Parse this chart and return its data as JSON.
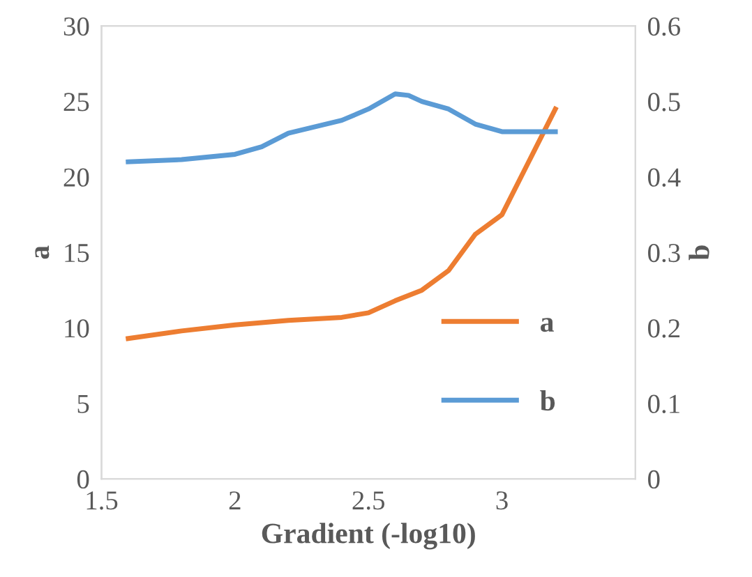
{
  "chart_data": {
    "type": "line",
    "xlabel": "Gradient (-log10)",
    "ylabel": "a",
    "y2label": "b",
    "xlim": [
      1.5,
      3.5
    ],
    "xticks": [
      1.5,
      2,
      2.5,
      3
    ],
    "ylim": [
      0,
      30
    ],
    "yticks": [
      0,
      5,
      10,
      15,
      20,
      25,
      30
    ],
    "y2lim": [
      0,
      0.6
    ],
    "y2ticks": [
      0,
      0.1,
      0.2,
      0.3,
      0.4,
      0.5,
      0.6
    ],
    "grid": false,
    "legend": "bottom right",
    "marker": "none",
    "line_style": "solid",
    "series": [
      {
        "name": "a",
        "color": "#ed7d31",
        "x": [
          1.6,
          1.8,
          2.0,
          2.2,
          2.4,
          2.5,
          2.6,
          2.7,
          2.8,
          2.9,
          3.0,
          3.1,
          3.2
        ],
        "values": [
          9.3,
          9.8,
          10.2,
          10.5,
          10.7,
          11.0,
          11.8,
          12.5,
          13.8,
          16.2,
          17.5,
          21.0,
          24.5
        ]
      },
      {
        "name": "b",
        "color": "#5b9bd5",
        "axis": "y2",
        "x": [
          1.6,
          1.8,
          2.0,
          2.1,
          2.2,
          2.4,
          2.5,
          2.6,
          2.65,
          2.7,
          2.8,
          2.9,
          3.0,
          3.1,
          3.2
        ],
        "values": [
          0.42,
          0.423,
          0.43,
          0.44,
          0.458,
          0.475,
          0.49,
          0.51,
          0.508,
          0.5,
          0.49,
          0.47,
          0.46,
          0.46,
          0.46
        ]
      }
    ]
  }
}
